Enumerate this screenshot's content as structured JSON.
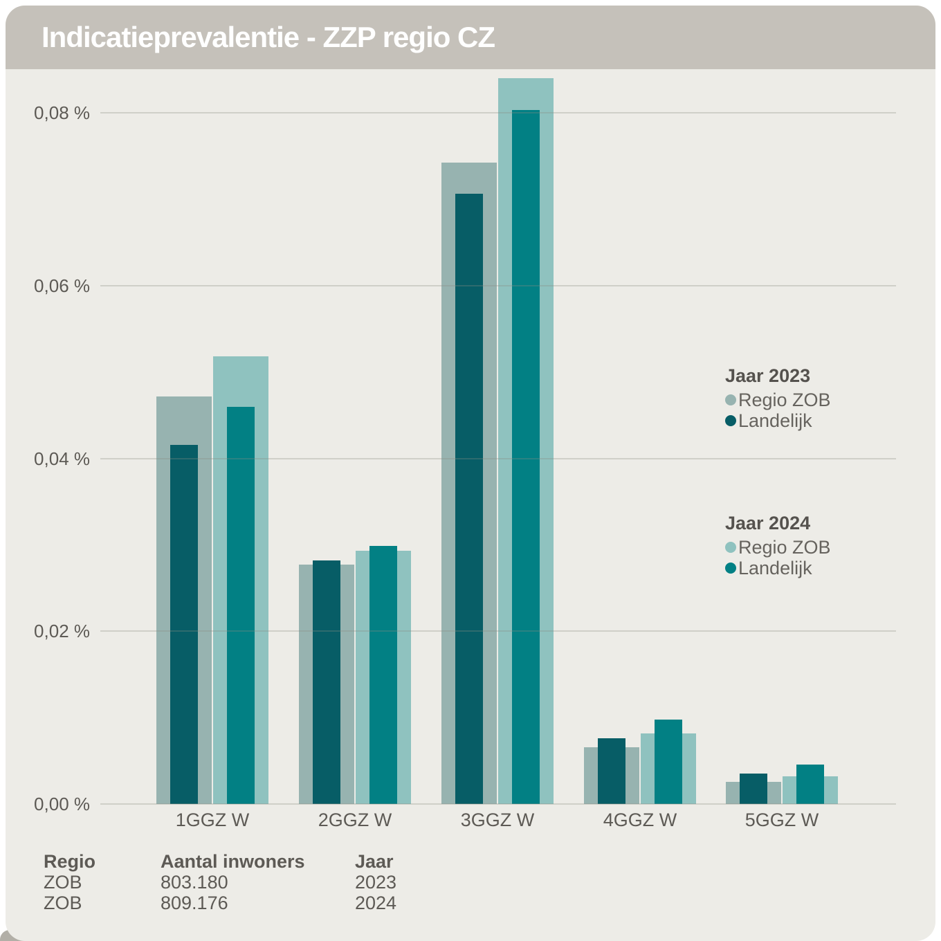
{
  "title": "Indicatieprevalentie - ZZP regio CZ",
  "colors": {
    "header_bg": "#c5c1ba",
    "card_bg": "#edece7",
    "title_text": "#ffffff",
    "axis_text": "#5d5a55",
    "gridline": "#d9d6d0",
    "regio_zob_2023": "#97b3b0",
    "landelijk_2023": "#075d66",
    "regio_zob_2024": "#8fc2bf",
    "landelijk_2024": "#028084",
    "next_card_gray": "#b2afa7"
  },
  "chart_data": {
    "type": "bar",
    "title": "Indicatieprevalentie - ZZP regio CZ",
    "categories": [
      "1GGZ W",
      "2GGZ W",
      "3GGZ W",
      "4GGZ W",
      "5GGZ W"
    ],
    "series": [
      {
        "name": "Regio ZOB",
        "group": "Jaar 2023",
        "style": "wide",
        "color_key": "regio_zob_2023",
        "values": [
          0.0472,
          0.0277,
          0.0742,
          0.0066,
          0.0026
        ]
      },
      {
        "name": "Landelijk",
        "group": "Jaar 2023",
        "style": "narrow",
        "color_key": "landelijk_2023",
        "values": [
          0.0416,
          0.0282,
          0.0706,
          0.0076,
          0.0035
        ]
      },
      {
        "name": "Regio ZOB",
        "group": "Jaar 2024",
        "style": "wide",
        "color_key": "regio_zob_2024",
        "values": [
          0.0518,
          0.0293,
          0.084,
          0.0082,
          0.0032
        ]
      },
      {
        "name": "Landelijk",
        "group": "Jaar 2024",
        "style": "narrow",
        "color_key": "landelijk_2024",
        "values": [
          0.046,
          0.0299,
          0.0803,
          0.0098,
          0.0046
        ]
      }
    ],
    "xlabel": "",
    "ylabel": "",
    "unit": "%",
    "ylim": [
      0,
      0.0845
    ],
    "yticks": [
      0.0,
      0.02,
      0.04,
      0.06,
      0.08
    ],
    "ytick_labels": [
      "0,00 %",
      "0,02 %",
      "0,04 %",
      "0,06 %",
      "0,08 %"
    ],
    "grid": true,
    "legend_position": "right"
  },
  "legend": {
    "groups": [
      {
        "title": "Jaar 2023",
        "items": [
          {
            "label": "Regio ZOB",
            "color": "#97b3b0"
          },
          {
            "label": "Landelijk",
            "color": "#075d66"
          }
        ]
      },
      {
        "title": "Jaar 2024",
        "items": [
          {
            "label": "Regio ZOB",
            "color": "#8fc2bf"
          },
          {
            "label": "Landelijk",
            "color": "#028084"
          }
        ]
      }
    ]
  },
  "table": {
    "headers": [
      "Regio",
      "Aantal inwoners",
      "Jaar"
    ],
    "rows": [
      [
        "ZOB",
        "803.180",
        "2023"
      ],
      [
        "ZOB",
        "809.176",
        "2024"
      ]
    ]
  }
}
